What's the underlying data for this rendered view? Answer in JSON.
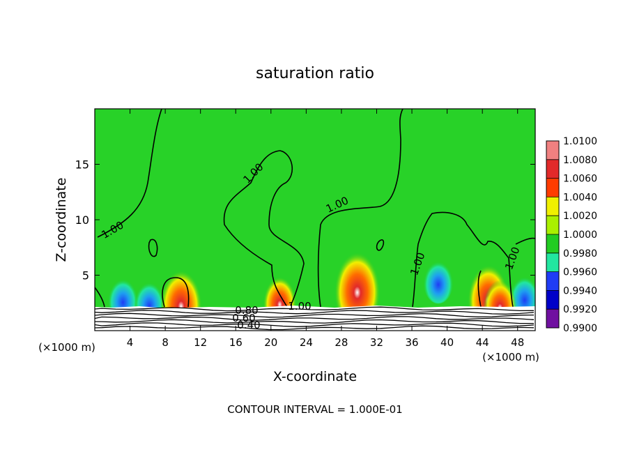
{
  "chart_data": {
    "type": "heatmap",
    "title": "saturation ratio",
    "xlabel": "X-coordinate",
    "ylabel": "Z-coordinate",
    "x_unit": "(×1000 m)",
    "y_unit": "(×1000 m)",
    "xlim": [
      0,
      50
    ],
    "ylim": [
      0,
      20
    ],
    "x_ticks": [
      4,
      8,
      12,
      16,
      20,
      24,
      28,
      32,
      36,
      40,
      44,
      48
    ],
    "y_ticks": [
      5,
      10,
      15
    ],
    "footer": "CONTOUR INTERVAL = 1.000E-01",
    "colorbar": {
      "labels": [
        "1.0100",
        "1.0080",
        "1.0060",
        "1.0040",
        "1.0020",
        "1.0000",
        "0.9980",
        "0.9960",
        "0.9940",
        "0.9920",
        "0.9900"
      ],
      "colors": [
        "#f08080",
        "#e22a2a",
        "#ff3c00",
        "#ff8c00",
        "#f0f000",
        "#aaf000",
        "#22cc22",
        "#22e6a0",
        "#1ea0f0",
        "#1f3cf5",
        "#0000c8",
        "#7010a0"
      ]
    },
    "contour_labels": [
      "1.00",
      "1.00",
      "1.00",
      "1.00",
      "1.00",
      "1.00",
      "0.80",
      "0.60",
      "0.40"
    ],
    "hotspots": [
      {
        "x": 9.8,
        "z": 2.5,
        "level": 1.006
      },
      {
        "x": 21.0,
        "z": 2.6,
        "level": 1.004
      },
      {
        "x": 29.8,
        "z": 3.8,
        "level": 1.007
      },
      {
        "x": 44.7,
        "z": 3.0,
        "level": 1.006
      },
      {
        "x": 46.0,
        "z": 2.3,
        "level": 1.004
      }
    ],
    "coldspots": [
      {
        "x": 3.2,
        "z": 2.6,
        "level": 0.9945
      },
      {
        "x": 6.2,
        "z": 2.3,
        "level": 0.9935
      },
      {
        "x": 39.0,
        "z": 4.2,
        "level": 0.9955
      },
      {
        "x": 48.8,
        "z": 2.8,
        "level": 0.9945
      }
    ]
  }
}
